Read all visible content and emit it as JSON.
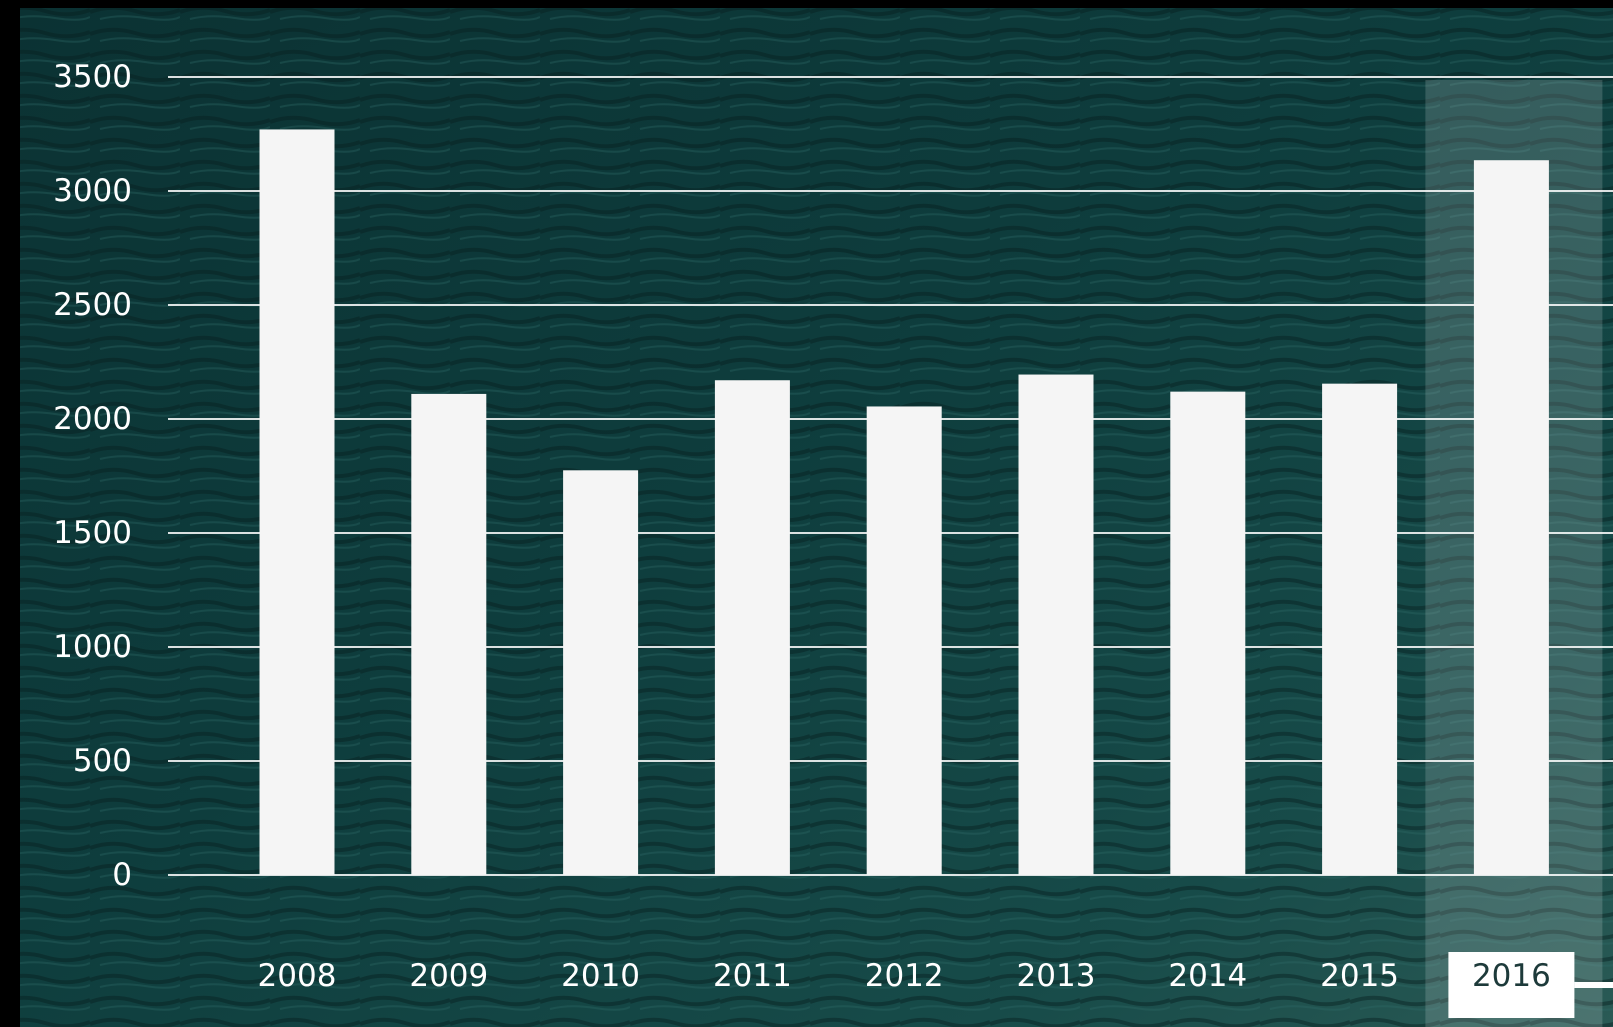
{
  "chart_data": {
    "type": "bar",
    "title": "",
    "xlabel": "",
    "ylabel": "",
    "categories": [
      "2008",
      "2009",
      "2010",
      "2011",
      "2012",
      "2013",
      "2014",
      "2015",
      "2016"
    ],
    "values": [
      3270,
      2110,
      1775,
      2170,
      2055,
      2195,
      2120,
      2155,
      3135
    ],
    "ylim": [
      0,
      3500
    ],
    "yticks": [
      0,
      500,
      1000,
      1500,
      2000,
      2500,
      3000,
      3500
    ],
    "grid": true,
    "highlighted_category": "2016",
    "colors": {
      "bar": "#f5f5f5",
      "grid": "#ffffff",
      "text": "#ffffff",
      "background": "#0e3b3c",
      "background_dark": "#06201f",
      "highlight_band": "#ffffff",
      "selected_label_bg": "#ffffff",
      "selected_label_text": "#1d3a3a"
    }
  }
}
